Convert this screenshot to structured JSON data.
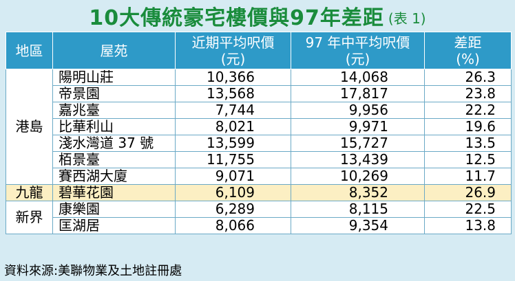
{
  "title": {
    "main": "10大傳統豪宅樓價與97年差距",
    "sub": "(表 1)"
  },
  "headers": {
    "region": "地區",
    "estate": "屋苑",
    "recent_l1": "近期平均呎價",
    "recent_l2": "(元)",
    "y97_l1": "97 年中平均呎價",
    "y97_l2": "(元)",
    "gap_l1": "差距",
    "gap_l2": "(%)"
  },
  "regions": {
    "hk_island": "港島",
    "kowloon": "九龍",
    "nt": "新界"
  },
  "rows": [
    {
      "estate": "陽明山莊",
      "recent": "10,366",
      "y97": "14,068",
      "gap": "26.3"
    },
    {
      "estate": "帝景園",
      "recent": "13,568",
      "y97": "17,817",
      "gap": "23.8"
    },
    {
      "estate": "嘉兆臺",
      "recent": "7,744",
      "y97": "9,956",
      "gap": "22.2"
    },
    {
      "estate": "比華利山",
      "recent": "8,021",
      "y97": "9,971",
      "gap": "19.6"
    },
    {
      "estate": "淺水灣道 37 號",
      "recent": "13,599",
      "y97": "15,727",
      "gap": "13.5"
    },
    {
      "estate": "栢景臺",
      "recent": "11,755",
      "y97": "13,439",
      "gap": "12.5"
    },
    {
      "estate": "賽西湖大廈",
      "recent": "9,071",
      "y97": "10,269",
      "gap": "11.7"
    },
    {
      "estate": "碧華花園",
      "recent": "6,109",
      "y97": "8,352",
      "gap": "26.9"
    },
    {
      "estate": "康樂園",
      "recent": "6,289",
      "y97": "8,115",
      "gap": "22.5"
    },
    {
      "estate": "匡湖居",
      "recent": "8,066",
      "y97": "9,354",
      "gap": "13.8"
    }
  ],
  "source": "資料來源:美聯物業及土地註冊處",
  "colors": {
    "title": "#1a8c3c",
    "header_bg": "#2e9ac8",
    "background": "#d6ebf3",
    "highlight_row": "#fcefc3"
  }
}
